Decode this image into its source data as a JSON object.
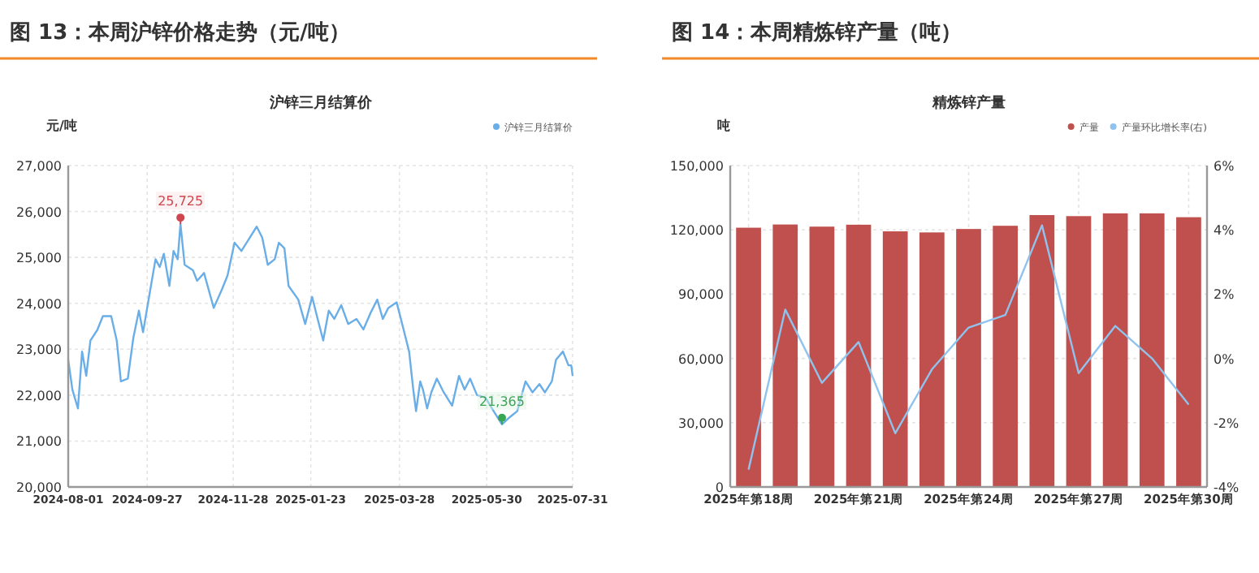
{
  "chart_data": [
    {
      "type": "line",
      "title": "图 13：本周沪锌价格走势（元/吨）",
      "subtitle": "沪锌三月结算价",
      "ylabel": "元/吨",
      "legend": "top right",
      "grid": true,
      "marker": "none",
      "line_style": "solid",
      "x": [
        "2024-08-01",
        "2024-08-04",
        "2024-08-08",
        "2024-08-11",
        "2024-08-14",
        "2024-08-17",
        "2024-08-22",
        "2024-08-26",
        "2024-09-01",
        "2024-09-05",
        "2024-09-08",
        "2024-09-13",
        "2024-09-17",
        "2024-09-21",
        "2024-09-24",
        "2024-09-29",
        "2024-10-03",
        "2024-10-06",
        "2024-10-09",
        "2024-10-13",
        "2024-10-16",
        "2024-10-19",
        "2024-10-21",
        "2024-10-24",
        "2024-10-30",
        "2024-11-02",
        "2024-11-07",
        "2024-11-14",
        "2024-11-20",
        "2024-11-24",
        "2024-11-29",
        "2024-12-04",
        "2024-12-10",
        "2024-12-15",
        "2024-12-19",
        "2024-12-23",
        "2024-12-28",
        "2024-12-31",
        "2025-01-04",
        "2025-01-07",
        "2025-01-14",
        "2025-01-19",
        "2025-01-24",
        "2025-01-28",
        "2025-02-01",
        "2025-02-05",
        "2025-02-09",
        "2025-02-14",
        "2025-02-19",
        "2025-02-25",
        "2025-03-02",
        "2025-03-07",
        "2025-03-12",
        "2025-03-16",
        "2025-03-20",
        "2025-03-26",
        "2025-03-31",
        "2025-04-04",
        "2025-04-07",
        "2025-04-09",
        "2025-04-12",
        "2025-04-14",
        "2025-04-17",
        "2025-04-20",
        "2025-04-24",
        "2025-04-29",
        "2025-05-05",
        "2025-05-10",
        "2025-05-14",
        "2025-05-18",
        "2025-05-23",
        "2025-05-29",
        "2025-06-04",
        "2025-06-10",
        "2025-06-16",
        "2025-06-21",
        "2025-06-27",
        "2025-07-02",
        "2025-07-07",
        "2025-07-11",
        "2025-07-16",
        "2025-07-19",
        "2025-07-24",
        "2025-07-28",
        "2025-07-30",
        "2025-07-31"
      ],
      "series": [
        {
          "name": "沪锌三月结算价",
          "color": "#6aaee8",
          "values": [
            22770,
            22120,
            21710,
            22950,
            22420,
            23190,
            23420,
            23720,
            23720,
            23190,
            22300,
            22360,
            23250,
            23840,
            23370,
            24260,
            24960,
            24790,
            25080,
            24380,
            25140,
            24960,
            25725,
            24840,
            24720,
            24490,
            24660,
            23900,
            24310,
            24610,
            25320,
            25140,
            25430,
            25670,
            25430,
            24840,
            24960,
            25320,
            25200,
            24380,
            24080,
            23550,
            24140,
            23660,
            23190,
            23840,
            23660,
            23960,
            23550,
            23660,
            23430,
            23780,
            24080,
            23660,
            23900,
            24020,
            23430,
            22950,
            22120,
            21650,
            22300,
            22120,
            21710,
            22060,
            22360,
            22060,
            21770,
            22420,
            22120,
            22360,
            22000,
            21950,
            21650,
            21365,
            21530,
            21650,
            22300,
            22060,
            22240,
            22060,
            22300,
            22770,
            22950,
            22650,
            22650,
            22420
          ]
        }
      ],
      "xlim": [
        "2024-08-01",
        "2025-07-31"
      ],
      "xticks": [
        "2024-08-01",
        "2024-09-27",
        "2024-11-28",
        "2025-01-23",
        "2025-03-28",
        "2025-05-30",
        "2025-07-31"
      ],
      "ylim": [
        20000,
        27000
      ],
      "yticks": [
        {
          "value": 20000,
          "label": "20,000"
        },
        {
          "value": 21000,
          "label": "21,000"
        },
        {
          "value": 22000,
          "label": "22,000"
        },
        {
          "value": 23000,
          "label": "23,000"
        },
        {
          "value": 24000,
          "label": "24,000"
        },
        {
          "value": 25000,
          "label": "25,000"
        },
        {
          "value": 26000,
          "label": "26,000"
        },
        {
          "value": 27000,
          "label": "27,000"
        }
      ],
      "annotations": [
        {
          "text": "25,725",
          "x": "2024-10-21",
          "y": 25725
        },
        {
          "text": "21,365",
          "x": "2025-06-10",
          "y": 21365
        }
      ]
    },
    {
      "type": "bar",
      "title": "图 14：本周精炼锌产量（吨）",
      "subtitle": "精炼锌产量",
      "ylabel": "吨",
      "legend": "top right",
      "grid": true,
      "categories": [
        "2025年第18周",
        null,
        null,
        "2025年第21周",
        null,
        null,
        "2025年第24周",
        null,
        null,
        "2025年第27周",
        null,
        null,
        "2025年第30周"
      ],
      "series": [
        {
          "name": "产量",
          "color": "#c0504d",
          "values": [
            121000,
            122500,
            121500,
            122400,
            119300,
            118800,
            120400,
            121900,
            126900,
            126400,
            127700,
            127700,
            125900
          ]
        },
        {
          "name": "产量环比增长率(右)",
          "type": "line",
          "axis": "y2",
          "color": "#8fc3ee",
          "marker": "none",
          "values": [
            -3.46,
            1.52,
            -0.76,
            0.51,
            -2.33,
            -0.34,
            0.96,
            1.35,
            4.14,
            -0.46,
            1.01,
            0.0,
            -1.44
          ]
        }
      ],
      "ylim": [
        0,
        150000
      ],
      "yticks": [
        0,
        {
          "value": 30000,
          "label": "30,000"
        },
        {
          "value": 60000,
          "label": "60,000"
        },
        {
          "value": 90000,
          "label": "90,000"
        },
        {
          "value": 120000,
          "label": "120,000"
        },
        {
          "value": 150000,
          "label": "150,000"
        }
      ],
      "y2lim": [
        -4,
        6
      ],
      "y2ticks": [
        {
          "value": -4,
          "label": "-4%"
        },
        {
          "value": -2,
          "label": "-2%"
        },
        {
          "value": 0,
          "label": "0%"
        },
        {
          "value": 2,
          "label": "2%"
        },
        {
          "value": 4,
          "label": "4%"
        },
        {
          "value": 6,
          "label": "6%"
        }
      ]
    }
  ]
}
